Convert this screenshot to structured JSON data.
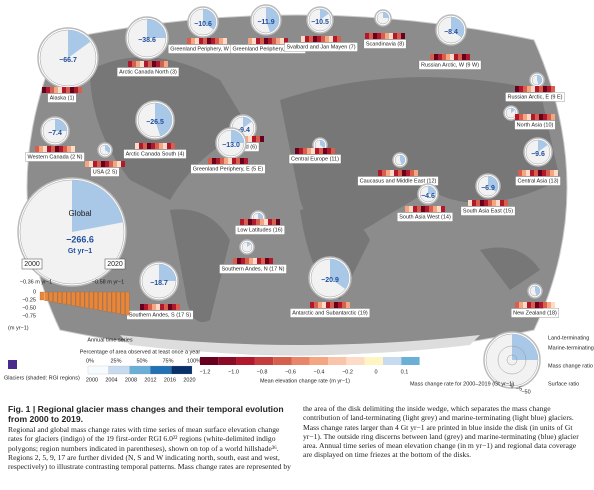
{
  "regions": [
    {
      "label": "Alaska (1)",
      "value": "−66.7"
    },
    {
      "label": "Arctic Canada North (3)",
      "value": "−38.6"
    },
    {
      "label": "Greenland Periphery, W (5 W)",
      "value": "−10.6"
    },
    {
      "label": "Greenland Periphery, N (5 N)",
      "value": "−11.9"
    },
    {
      "label": "Svalbard and Jan Mayen (7)",
      "value": "−10.5"
    },
    {
      "label": "Scandinavia (8)"
    },
    {
      "label": "Russian Arctic, W (9 W)",
      "value": "−8.4"
    },
    {
      "label": "Russian Arctic, E (9 E)"
    },
    {
      "label": "North Asia (10)"
    },
    {
      "label": "Western Canada (2 N)",
      "value": "−7.4"
    },
    {
      "label": "USA (2 S)"
    },
    {
      "label": "Arctic Canada South (4)",
      "value": "−26.5"
    },
    {
      "label": "Iceland (6)",
      "value": "−9.4"
    },
    {
      "label": "Greenland Periphery, E (5 E)",
      "value": "−13.0"
    },
    {
      "label": "Central Europe (11)"
    },
    {
      "label": "Caucasus and Middle East (12)"
    },
    {
      "label": "Central Asia (13)",
      "value": "−9.6"
    },
    {
      "label": "South Asia West (14)",
      "value": "−4.6"
    },
    {
      "label": "South Asia East (15)",
      "value": "−6.9"
    },
    {
      "label": "Low Latitudes (16)"
    },
    {
      "label": "Southern Andes, N (17 N)"
    },
    {
      "label": "Southern Andes, S (17 S)",
      "value": "−18.7"
    },
    {
      "label": "Antarctic and Subantarctic (19)",
      "value": "−20.9"
    },
    {
      "label": "New Zealand (18)"
    }
  ],
  "global": {
    "label": "Global",
    "value": "−266.6",
    "unit": "Gt yr−1",
    "start": "2000",
    "end": "2020",
    "rate_start": "−0.36 m yr−1",
    "rate_end": "−0.58 m yr−1",
    "axis": [
      "0",
      "−0.25",
      "−0.50",
      "−0.75"
    ],
    "axis_unit": "(m yr−1)",
    "series_label": "Annual time series"
  },
  "coverage": {
    "title": "Percentage of area observed at least once a year",
    "ticks": [
      "0%",
      "25%",
      "50%",
      "75%",
      "100%"
    ],
    "years": [
      "2000",
      "2004",
      "2008",
      "2012",
      "2016",
      "2020"
    ]
  },
  "glaciers_legend": "Glaciers (shaded: RGI regions)",
  "elevation_bar": {
    "ticks": [
      "−1.2",
      "−1.0",
      "−0.8",
      "−0.6",
      "−0.4",
      "−0.2",
      "0",
      "0.1"
    ],
    "title": "Mean elevation change rate (m yr−1)"
  },
  "disk_legend": {
    "land": "Land-terminating",
    "marine": "Marine-terminating",
    "mass_ratio": "Mass change ratio",
    "surface_ratio": "Surface ratio",
    "ticks": [
      "0",
      "−5",
      "−50"
    ],
    "title": "Mass change rate for 2000–2019 (Gt yr−1)"
  },
  "caption": {
    "title": "Fig. 1 | Regional glacier mass changes and their temporal evolution from 2000 to 2019.",
    "left": "Regional and global mass change rates with time series of mean surface elevation change rates for glaciers (indigo) of the 19 first-order RGI 6.0²² regions (white-delimited indigo polygons; region numbers indicated in parentheses), shown on top of a world hillshade³⁶. Regions 2, 5, 9, 17 are further divided (N, S and W indicating north, south, east and west, respectively) to illustrate contrasting temporal patterns. Mass change rates are represented by",
    "right": "the area of the disk delimiting the inside wedge, which separates the mass change contribution of land-terminating (light grey) and marine-terminating (light blue) glaciers. Mass change rates larger than 4 Gt yr−1 are printed in blue inside the disk (in units of Gt yr−1). The outside ring discerns between land (grey) and marine-terminating (blue) glacier area. Annual time series of mean elevation change (in m yr−1) and regional data coverage are displayed on time friezes at the bottom of the disks."
  }
}
